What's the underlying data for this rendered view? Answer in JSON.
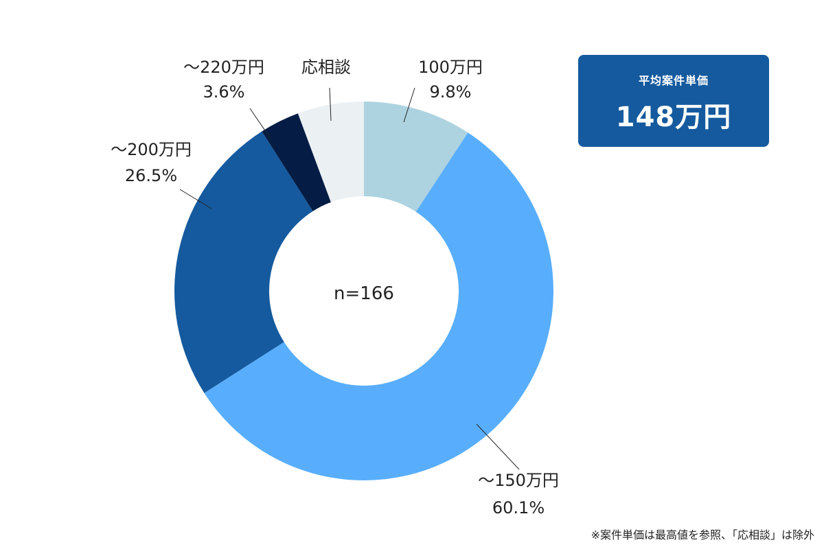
{
  "summary": {
    "label": "平均案件単価",
    "value": "148万円"
  },
  "footnote": "※案件単価は最高値を参照、「応相談」は除外",
  "chart_data": {
    "type": "pie",
    "variant": "donut",
    "center_label": "n=166",
    "slices": [
      {
        "label": "100万円",
        "percent_text": "9.8%",
        "value": 9.8,
        "color": "#add3e0"
      },
      {
        "label": "～150万円",
        "percent_text": "60.1%",
        "value": 60.1,
        "color": "#58aefc"
      },
      {
        "label": "～200万円",
        "percent_text": "26.5%",
        "value": 26.5,
        "color": "#155a9e"
      },
      {
        "label": "～220万円",
        "percent_text": "3.6%",
        "value": 3.6,
        "color": "#051d44"
      },
      {
        "label": "応相談",
        "percent_text": "",
        "value": 6.0,
        "color": "#ebf0f3"
      }
    ]
  },
  "colors": {
    "summary_box": "#155a9e",
    "summary_text": "#ffffff"
  }
}
